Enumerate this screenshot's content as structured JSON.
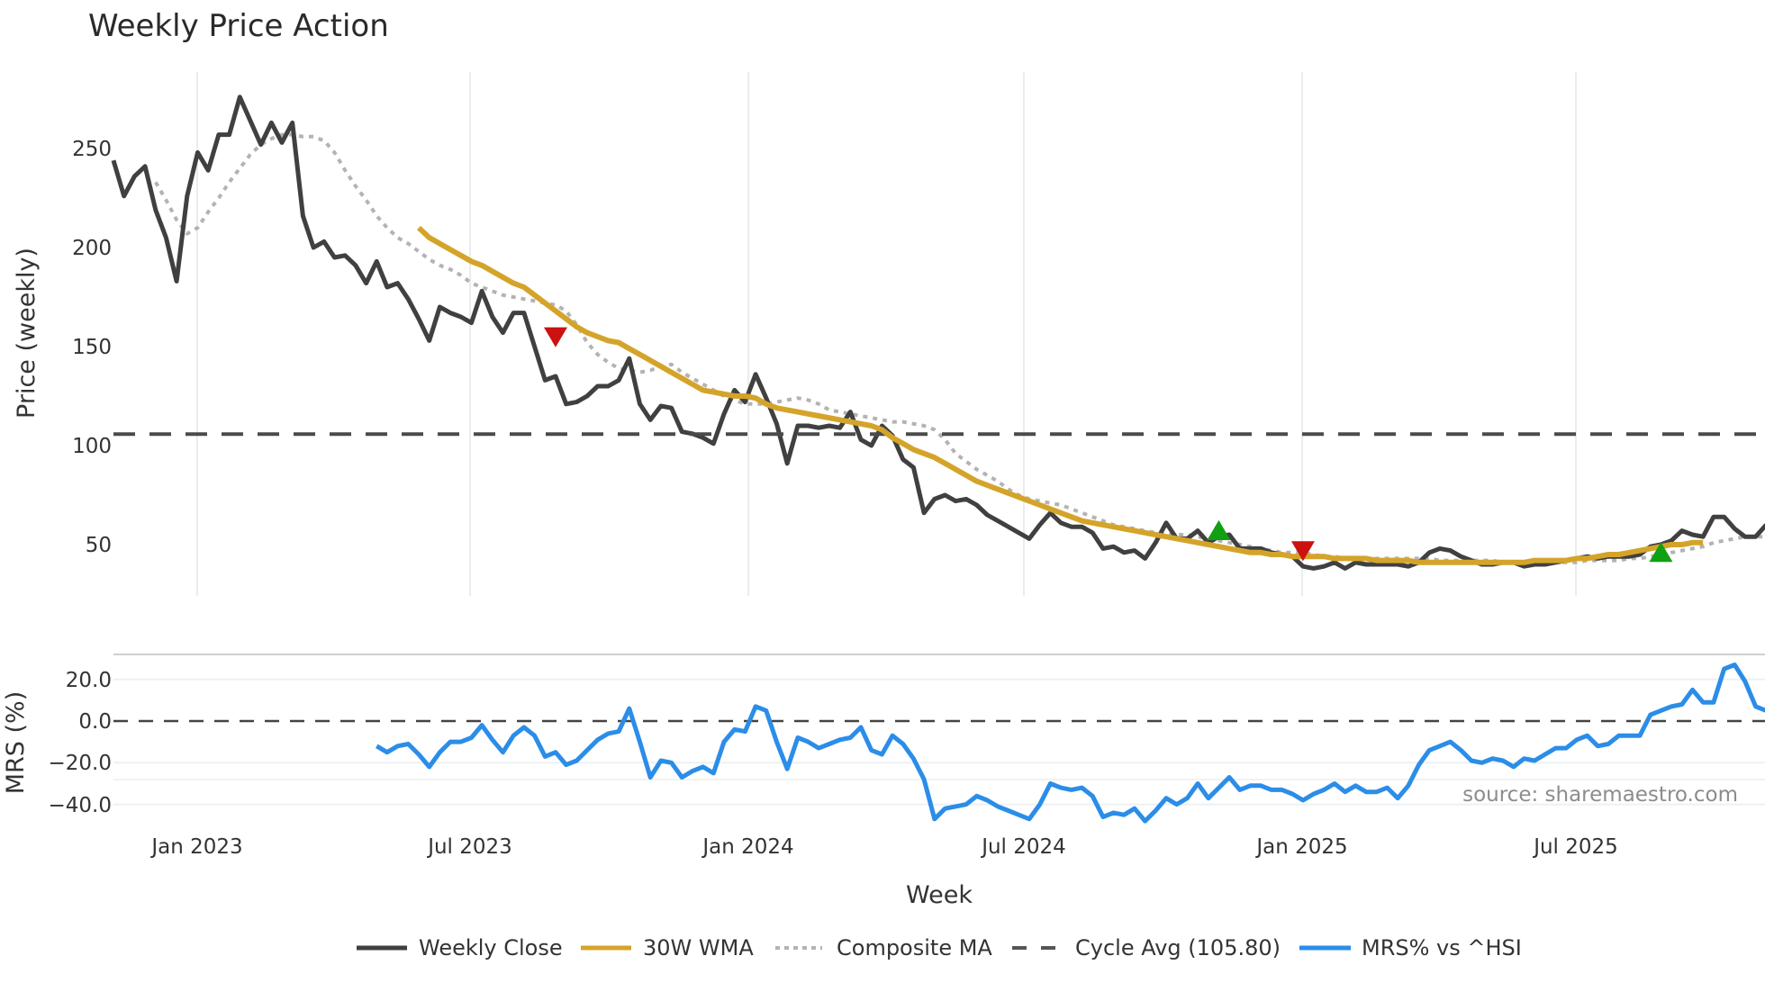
{
  "chart_data": [
    {
      "type": "line",
      "title": "Weekly Price Action",
      "xlabel": "Week",
      "ylabel": "Price (weekly)",
      "ylim": [
        22,
        290
      ],
      "yticks": [
        50,
        100,
        150,
        200,
        250
      ],
      "xticks": [
        "Jan 2023",
        "Jul 2023",
        "Jan 2024",
        "Jul 2024",
        "Jan 2025",
        "Jul 2025"
      ],
      "x_start_week_index": 0,
      "grid": "vertical",
      "series": [
        {
          "name": "Weekly Close",
          "color": "#404040",
          "start": 0,
          "values": [
            244,
            226,
            236,
            241,
            219,
            205,
            183,
            226,
            248,
            239,
            257,
            257,
            276,
            264,
            252,
            263,
            253,
            263,
            216,
            200,
            203,
            195,
            196,
            191,
            182,
            193,
            180,
            182,
            174,
            164,
            153,
            170,
            167,
            165,
            162,
            178,
            165,
            157,
            167,
            167,
            150,
            133,
            135,
            121,
            122,
            125,
            130,
            130,
            133,
            144,
            121,
            113,
            120,
            119,
            107,
            106,
            104,
            101,
            116,
            128,
            122,
            136,
            124,
            111,
            91,
            110,
            110,
            109,
            110,
            109,
            117,
            103,
            100,
            110,
            105,
            93,
            89,
            66,
            73,
            75,
            72,
            73,
            70,
            65,
            62,
            59,
            56,
            53,
            60,
            66,
            61,
            59,
            59,
            56,
            48,
            49,
            46,
            47,
            43,
            51,
            61,
            53,
            53,
            57,
            51,
            54,
            55,
            48,
            48,
            48,
            46,
            45,
            44,
            39,
            38,
            39,
            41,
            38,
            41,
            40,
            40,
            40,
            40,
            39,
            41,
            46,
            48,
            47,
            44,
            42,
            40,
            40,
            41,
            41,
            39,
            40,
            40,
            41,
            42,
            43,
            44,
            43,
            44,
            44,
            44,
            45,
            49,
            50,
            52,
            57,
            55,
            54,
            64,
            64,
            58,
            54,
            54,
            60
          ]
        },
        {
          "name": "30W WMA",
          "color": "#d4a42a",
          "start": 29,
          "values": [
            210,
            205,
            202,
            199,
            196,
            193,
            191,
            188,
            185,
            182,
            180,
            176,
            172,
            168,
            164,
            160,
            157,
            155,
            153,
            152,
            149,
            146,
            143,
            140,
            137,
            134,
            131,
            128,
            127,
            126,
            125,
            125,
            124,
            121,
            119,
            118,
            117,
            116,
            115,
            114,
            113,
            112,
            111,
            110,
            108,
            104,
            101,
            98,
            96,
            94,
            91,
            88,
            85,
            82,
            80,
            78,
            76,
            74,
            72,
            70,
            68,
            66,
            64,
            62,
            61,
            60,
            59,
            58,
            57,
            56,
            55,
            54,
            53,
            52,
            51,
            50,
            49,
            48,
            47,
            46,
            46,
            45,
            45,
            44,
            44,
            44,
            44,
            43,
            43,
            43,
            43,
            42,
            42,
            42,
            42,
            41,
            41,
            41,
            41,
            41,
            41,
            41,
            41,
            41,
            41,
            41,
            42,
            42,
            42,
            42,
            43,
            43,
            44,
            45,
            45,
            46,
            47,
            48,
            49,
            50,
            50,
            51,
            51
          ]
        },
        {
          "name": "Composite MA",
          "color": "#b3b3b3",
          "start": 4,
          "values": [
            233,
            224,
            214,
            207,
            210,
            218,
            225,
            233,
            240,
            247,
            252,
            255,
            257,
            257,
            256,
            256,
            254,
            248,
            239,
            231,
            224,
            216,
            210,
            205,
            202,
            198,
            194,
            191,
            189,
            186,
            182,
            180,
            178,
            176,
            175,
            174,
            173,
            172,
            171,
            168,
            161,
            152,
            146,
            142,
            139,
            138,
            137,
            138,
            140,
            141,
            137,
            134,
            131,
            128,
            125,
            123,
            121,
            121,
            121,
            122,
            123,
            124,
            123,
            121,
            118,
            117,
            116,
            115,
            114,
            113,
            112,
            112,
            111,
            110,
            108,
            103,
            96,
            92,
            88,
            85,
            82,
            78,
            75,
            73,
            72,
            71,
            70,
            68,
            66,
            64,
            62,
            60,
            59,
            58,
            57,
            56,
            55,
            55,
            55,
            54,
            53,
            52,
            51,
            50,
            49,
            48,
            47,
            46,
            46,
            46,
            45,
            44,
            44,
            43,
            43,
            43,
            43,
            43,
            43,
            43,
            43,
            43,
            42,
            42,
            42,
            42,
            42,
            42,
            41,
            41,
            41,
            41,
            41,
            41,
            41,
            41,
            42,
            42,
            42,
            42,
            43,
            43,
            44,
            45,
            46,
            47,
            48,
            49,
            51,
            52,
            53,
            54,
            54,
            54,
            54
          ]
        },
        {
          "name": "Cycle Avg (105.80)",
          "color": "#4a4a4a",
          "value": 105.8,
          "style": "dashed"
        }
      ],
      "markers": [
        {
          "type": "sell",
          "shape": "triangle-down",
          "color": "#cc1111",
          "week": 42,
          "value": 155
        },
        {
          "type": "buy",
          "shape": "triangle-up",
          "color": "#11a011",
          "week": 105,
          "value": 57
        },
        {
          "type": "sell",
          "shape": "triangle-down",
          "color": "#cc1111",
          "week": 113,
          "value": 47
        },
        {
          "type": "buy",
          "shape": "triangle-up",
          "color": "#11a011",
          "week": 147,
          "value": 46
        }
      ]
    },
    {
      "type": "line",
      "title": "",
      "xlabel": "Week",
      "ylabel": "MRS (%)",
      "ylim": [
        -50,
        30
      ],
      "yticks": [
        20.0,
        0.0,
        -20.0,
        -40.0
      ],
      "series": [
        {
          "name": "MRS% vs ^HSI",
          "color": "#2b8de8",
          "start": 25,
          "values": [
            -12,
            -15,
            -12,
            -11,
            -16,
            -22,
            -15,
            -10,
            -10,
            -8,
            -2,
            -9,
            -15,
            -7,
            -3,
            -7,
            -17,
            -15,
            -21,
            -19,
            -14,
            -9,
            -6,
            -5,
            6,
            -10,
            -27,
            -19,
            -20,
            -27,
            -24,
            -22,
            -25,
            -10,
            -4,
            -5,
            7,
            5,
            -10,
            -23,
            -8,
            -10,
            -13,
            -11,
            -9,
            -8,
            -3,
            -14,
            -16,
            -7,
            -11,
            -18,
            -28,
            -47,
            -42,
            -41,
            -40,
            -36,
            -38,
            -41,
            -43,
            -45,
            -47,
            -40,
            -30,
            -32,
            -33,
            -32,
            -36,
            -46,
            -44,
            -45,
            -42,
            -48,
            -43,
            -37,
            -40,
            -37,
            -30,
            -37,
            -32,
            -27,
            -33,
            -31,
            -31,
            -33,
            -33,
            -35,
            -38,
            -35,
            -33,
            -30,
            -34,
            -31,
            -34,
            -34,
            -32,
            -37,
            -31,
            -21,
            -14,
            -12,
            -10,
            -14,
            -19,
            -20,
            -18,
            -19,
            -22,
            -18,
            -19,
            -16,
            -13,
            -13,
            -9,
            -7,
            -12,
            -11,
            -7,
            -7,
            -7,
            3,
            5,
            7,
            8,
            15,
            9,
            9,
            25,
            27,
            19,
            7,
            5,
            18
          ]
        }
      ],
      "reference_line": {
        "value": 0,
        "style": "dashed",
        "color": "#444444"
      }
    }
  ],
  "header": {
    "title": "Weekly Price Action"
  },
  "axes": {
    "price_ylabel": "Price (weekly)",
    "mrs_ylabel": "MRS (%)",
    "xlabel": "Week",
    "price_ticks": [
      "250",
      "200",
      "150",
      "100",
      "50"
    ],
    "mrs_ticks": [
      "20.0",
      "0.0",
      "−20.0",
      "−40.0"
    ],
    "x_ticks": [
      "Jan 2023",
      "Jul 2023",
      "Jan 2024",
      "Jul 2024",
      "Jan 2025",
      "Jul 2025"
    ]
  },
  "legend": {
    "items": [
      {
        "label": "Weekly Close",
        "color": "#404040",
        "style": "solid"
      },
      {
        "label": "30W WMA",
        "color": "#d4a42a",
        "style": "solid"
      },
      {
        "label": "Composite MA",
        "color": "#b3b3b3",
        "style": "dotted"
      },
      {
        "label": "Cycle Avg (105.80)",
        "color": "#4a4a4a",
        "style": "dashed"
      },
      {
        "label": "MRS% vs ^HSI",
        "color": "#2b8de8",
        "style": "solid"
      }
    ]
  },
  "source": "source: sharemaestro.com"
}
